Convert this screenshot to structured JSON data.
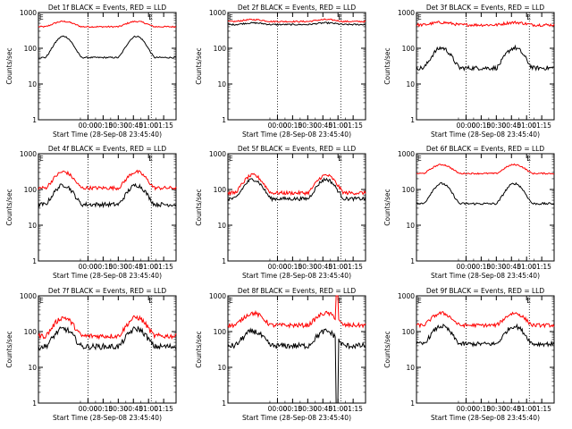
{
  "chart_data": [
    {
      "type": "line",
      "title": "Det 1f BLACK = Events, RED = LLD",
      "xlabel": "Start Time (28-Sep-08 23:45:40)",
      "ylabel": "Counts/sec",
      "yscale": "log",
      "ylim": [
        1,
        1000
      ],
      "x_ticks": [
        "00:00",
        "00:15",
        "00:30",
        "00:45",
        "01:00",
        "01:15"
      ],
      "y_ticks": [
        "1",
        "10",
        "100",
        "1000"
      ],
      "markers": [
        "E",
        "E"
      ],
      "series": [
        {
          "color": "#ff0000",
          "base": 400,
          "amp": 0.33,
          "noise": 0.02
        },
        {
          "color": "#000000",
          "base": 55,
          "amp": 1.32,
          "noise": 0.02
        }
      ]
    },
    {
      "type": "line",
      "title": "Det 2f BLACK = Events, RED = LLD",
      "xlabel": "Start Time (28-Sep-08 23:45:40)",
      "ylabel": "Counts/sec",
      "yscale": "log",
      "ylim": [
        1,
        1000
      ],
      "x_ticks": [
        "00:00",
        "00:15",
        "00:30",
        "00:45",
        "01:00",
        "01:15"
      ],
      "y_ticks": [
        "1",
        "10",
        "100",
        "1000"
      ],
      "markers": [
        "E",
        "E"
      ],
      "series": [
        {
          "color": "#ff0000",
          "base": 560,
          "amp": 0.12,
          "noise": 0.02
        },
        {
          "color": "#000000",
          "base": 460,
          "amp": 0.1,
          "noise": 0.02
        }
      ]
    },
    {
      "type": "line",
      "title": "Det 3f BLACK = Events, RED = LLD",
      "xlabel": "Start Time (28-Sep-08 23:45:40)",
      "ylabel": "Counts/sec",
      "yscale": "log",
      "ylim": [
        1,
        1000
      ],
      "x_ticks": [
        "00:00",
        "00:15",
        "00:30",
        "00:45",
        "01:00",
        "01:15"
      ],
      "y_ticks": [
        "1",
        "10",
        "100",
        "1000"
      ],
      "markers": [
        "E",
        "E"
      ],
      "series": [
        {
          "color": "#ff0000",
          "base": 450,
          "amp": 0.15,
          "noise": 0.04
        },
        {
          "color": "#000000",
          "base": 28,
          "amp": 1.25,
          "noise": 0.06
        }
      ]
    },
    {
      "type": "line",
      "title": "Det 4f BLACK = Events, RED = LLD",
      "xlabel": "Start Time (28-Sep-08 23:45:40)",
      "ylabel": "Counts/sec",
      "yscale": "log",
      "ylim": [
        1,
        1000
      ],
      "x_ticks": [
        "00:00",
        "00:15",
        "00:30",
        "00:45",
        "01:00",
        "01:15"
      ],
      "y_ticks": [
        "1",
        "10",
        "100",
        "1000"
      ],
      "markers": [
        "E",
        "E"
      ],
      "series": [
        {
          "color": "#ff0000",
          "base": 110,
          "amp": 1.0,
          "noise": 0.05
        },
        {
          "color": "#000000",
          "base": 38,
          "amp": 1.2,
          "noise": 0.06
        }
      ]
    },
    {
      "type": "line",
      "title": "Det 5f BLACK = Events, RED = LLD",
      "xlabel": "Start Time (28-Sep-08 23:45:40)",
      "ylabel": "Counts/sec",
      "yscale": "log",
      "ylim": [
        1,
        1000
      ],
      "x_ticks": [
        "00:00",
        "00:15",
        "00:30",
        "00:45",
        "01:00",
        "01:15"
      ],
      "y_ticks": [
        "1",
        "10",
        "100",
        "1000"
      ],
      "markers": [
        "E",
        "E"
      ],
      "series": [
        {
          "color": "#ff0000",
          "base": 80,
          "amp": 1.1,
          "noise": 0.05
        },
        {
          "color": "#000000",
          "base": 55,
          "amp": 1.2,
          "noise": 0.05
        }
      ]
    },
    {
      "type": "line",
      "title": "Det 6f BLACK = Events, RED = LLD",
      "xlabel": "Start Time (28-Sep-08 23:45:40)",
      "ylabel": "Counts/sec",
      "yscale": "log",
      "ylim": [
        1,
        1000
      ],
      "x_ticks": [
        "00:00",
        "00:15",
        "00:30",
        "00:45",
        "01:00",
        "01:15"
      ],
      "y_ticks": [
        "1",
        "10",
        "100",
        "1000"
      ],
      "markers": [
        "E",
        "E"
      ],
      "series": [
        {
          "color": "#ff0000",
          "base": 280,
          "amp": 0.55,
          "noise": 0.02
        },
        {
          "color": "#000000",
          "base": 40,
          "amp": 1.25,
          "noise": 0.03
        }
      ]
    },
    {
      "type": "line",
      "title": "Det 7f BLACK = Events, RED = LLD",
      "xlabel": "Start Time (28-Sep-08 23:45:40)",
      "ylabel": "Counts/sec",
      "yscale": "log",
      "ylim": [
        1,
        1000
      ],
      "x_ticks": [
        "00:00",
        "00:15",
        "00:30",
        "00:45",
        "01:00",
        "01:15"
      ],
      "y_ticks": [
        "1",
        "10",
        "100",
        "1000"
      ],
      "markers": [
        "E",
        "E"
      ],
      "series": [
        {
          "color": "#ff0000",
          "base": 75,
          "amp": 1.15,
          "noise": 0.07
        },
        {
          "color": "#000000",
          "base": 38,
          "amp": 1.1,
          "noise": 0.08
        }
      ]
    },
    {
      "type": "line",
      "title": "Det 8f BLACK = Events, RED = LLD",
      "xlabel": "Start Time (28-Sep-08 23:45:40)",
      "ylabel": "Counts/sec",
      "yscale": "log",
      "ylim": [
        1,
        1000
      ],
      "x_ticks": [
        "00:00",
        "00:15",
        "00:30",
        "00:45",
        "01:00",
        "01:15"
      ],
      "y_ticks": [
        "1",
        "10",
        "100",
        "1000"
      ],
      "markers": [
        "E",
        "E"
      ],
      "series": [
        {
          "color": "#ff0000",
          "base": 150,
          "amp": 0.75,
          "noise": 0.06,
          "spike": "up"
        },
        {
          "color": "#000000",
          "base": 40,
          "amp": 0.9,
          "noise": 0.08,
          "spike": "down"
        }
      ]
    },
    {
      "type": "line",
      "title": "Det 9f BLACK = Events, RED = LLD",
      "xlabel": "Start Time (28-Sep-08 23:45:40)",
      "ylabel": "Counts/sec",
      "yscale": "log",
      "ylim": [
        1,
        1000
      ],
      "x_ticks": [
        "00:00",
        "00:15",
        "00:30",
        "00:45",
        "01:00",
        "01:15"
      ],
      "y_ticks": [
        "1",
        "10",
        "100",
        "1000"
      ],
      "markers": [
        "E",
        "E"
      ],
      "series": [
        {
          "color": "#ff0000",
          "base": 150,
          "amp": 0.75,
          "noise": 0.05
        },
        {
          "color": "#000000",
          "base": 45,
          "amp": 1.1,
          "noise": 0.06
        }
      ]
    }
  ]
}
